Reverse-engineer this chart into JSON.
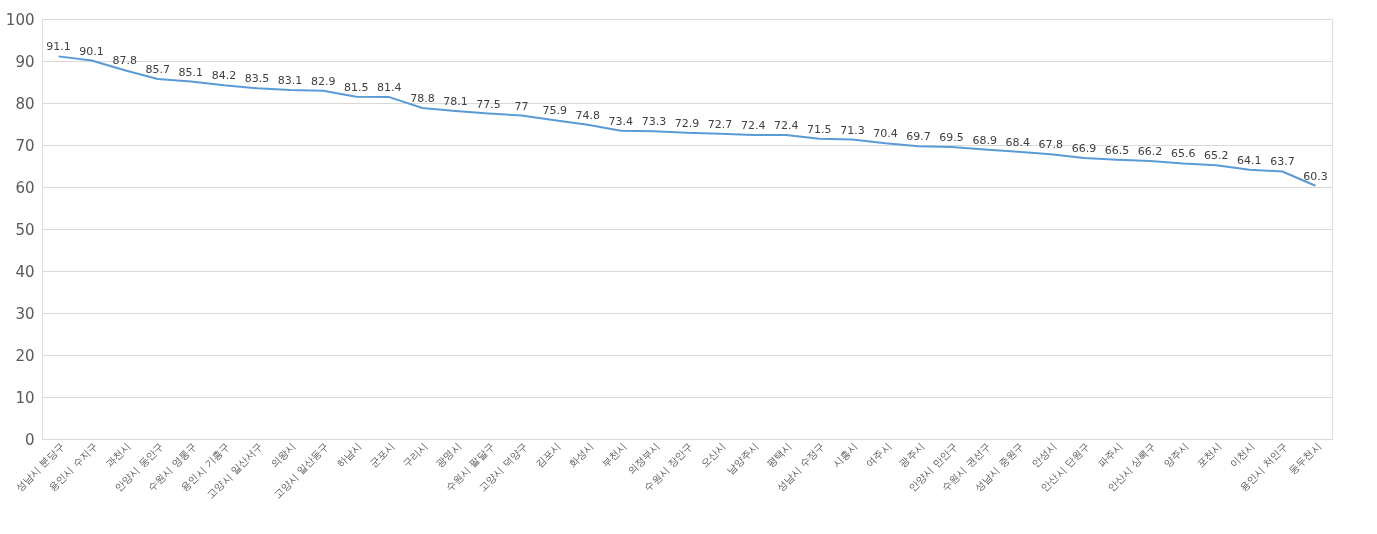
{
  "chart_data": {
    "type": "line",
    "categories": [
      "성남시 분당구",
      "용인시 수지구",
      "과천시",
      "안양시 동안구",
      "수원시 영통구",
      "용인시 기흥구",
      "고양시 일산서구",
      "의왕시",
      "고양시 일산동구",
      "하남시",
      "군포시",
      "구리시",
      "광명시",
      "수원시 팔달구",
      "고양시 덕양구",
      "김포시",
      "화성시",
      "부천시",
      "의정부시",
      "수원시 장안구",
      "오산시",
      "남양주시",
      "평택시",
      "성남시 수정구",
      "시흥시",
      "여주시",
      "광주시",
      "안양시 만안구",
      "수원시 권선구",
      "성남시 중원구",
      "안성시",
      "안산시 단원구",
      "파주시",
      "안산시 상록구",
      "양주시",
      "포천시",
      "이천시",
      "용인시 처인구",
      "동두천시"
    ],
    "series": [
      {
        "color": "#5b9bd5",
        "values": [
          91.1,
          90.1,
          87.8,
          85.7,
          85.1,
          84.2,
          83.5,
          83.1,
          82.9,
          81.5,
          81.4,
          78.8,
          78.1,
          77.5,
          77,
          75.9,
          74.8,
          73.4,
          73.3,
          72.9,
          72.7,
          72.4,
          72.4,
          71.5,
          71.3,
          70.4,
          69.7,
          69.5,
          68.9,
          68.4,
          67.8,
          66.9,
          66.5,
          66.2,
          65.6,
          65.2,
          64.1,
          63.7,
          60.3
        ]
      }
    ],
    "ylim": [
      0,
      100
    ],
    "yticks": [
      0,
      10,
      20,
      30,
      40,
      50,
      60,
      70,
      80,
      90,
      100
    ],
    "grid": "y",
    "data_labels": true,
    "marker": "none",
    "line_style": "solid",
    "legend": false
  }
}
